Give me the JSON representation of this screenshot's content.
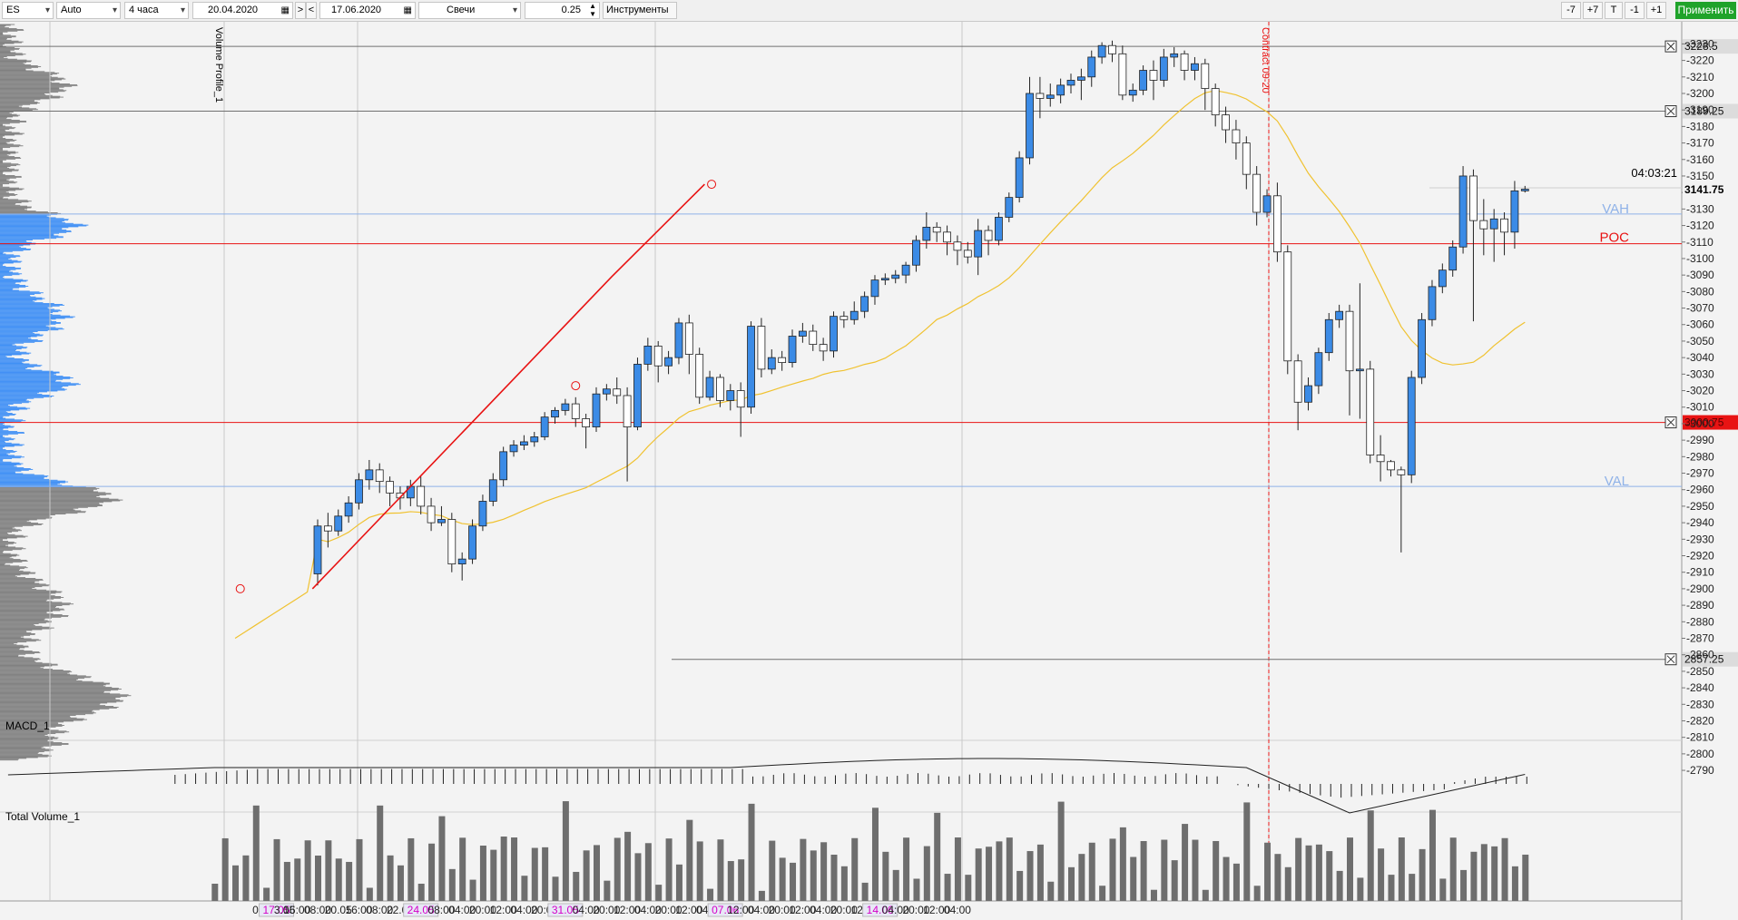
{
  "toolbar": {
    "symbol": "ES",
    "scale_mode": "Auto",
    "timeframe": "4 часа",
    "date_from": "20.04.2020",
    "nav_next": ">",
    "nav_prev": "<",
    "date_to": "17.06.2020",
    "chart_type": "Свечи",
    "tick_size": "0.25",
    "tools_label": "Инструменты",
    "btn_minus7": "-7",
    "btn_plus7": "+7",
    "btn_t": "T",
    "btn_minus1": "-1",
    "btn_plus1": "+1",
    "apply_label": "Применить",
    "apply_color": "#1fa32a"
  },
  "chart_data": {
    "type": "candlestick",
    "symbol": "ES",
    "y_range": [
      2796,
      3242
    ],
    "y_ticks": [
      3230,
      3220,
      3210,
      3200,
      3190,
      3180,
      3170,
      3160,
      3150,
      3140,
      3130,
      3120,
      3110,
      3100,
      3090,
      3080,
      3070,
      3060,
      3050,
      3040,
      3030,
      3020,
      3010,
      3000,
      2990,
      2980,
      2970,
      2960,
      2950,
      2940,
      2930,
      2920,
      2910,
      2900,
      2890,
      2880,
      2870,
      2860,
      2850,
      2840,
      2830,
      2820,
      2810,
      2800,
      2790
    ],
    "candles": [
      [
        2909,
        2938,
        2902,
        2942
      ],
      [
        2938,
        2935,
        2925,
        2946
      ],
      [
        2935,
        2944,
        2932,
        2948
      ],
      [
        2944,
        2952,
        2940,
        2956
      ],
      [
        2952,
        2966,
        2948,
        2970
      ],
      [
        2966,
        2972,
        2960,
        2978
      ],
      [
        2972,
        2965,
        2958,
        2976
      ],
      [
        2965,
        2958,
        2950,
        2968
      ],
      [
        2958,
        2955,
        2948,
        2962
      ],
      [
        2955,
        2962,
        2950,
        2966
      ],
      [
        2962,
        2950,
        2945,
        2968
      ],
      [
        2950,
        2940,
        2935,
        2955
      ],
      [
        2940,
        2942,
        2938,
        2950
      ],
      [
        2942,
        2915,
        2910,
        2946
      ],
      [
        2915,
        2918,
        2905,
        2922
      ],
      [
        2918,
        2938,
        2915,
        2942
      ],
      [
        2938,
        2953,
        2935,
        2957
      ],
      [
        2953,
        2966,
        2950,
        2970
      ],
      [
        2966,
        2983,
        2962,
        2986
      ],
      [
        2983,
        2987,
        2980,
        2990
      ],
      [
        2987,
        2989,
        2984,
        2993
      ],
      [
        2989,
        2992,
        2986,
        2995
      ],
      [
        2992,
        3004,
        2990,
        3007
      ],
      [
        3004,
        3008,
        3000,
        3010
      ],
      [
        3008,
        3012,
        3005,
        3015
      ],
      [
        3012,
        3003,
        2998,
        3016
      ],
      [
        3003,
        2998,
        2985,
        3006
      ],
      [
        2998,
        3018,
        2995,
        3022
      ],
      [
        3018,
        3021,
        3014,
        3024
      ],
      [
        3021,
        3017,
        3012,
        3028
      ],
      [
        3017,
        2998,
        2965,
        3022
      ],
      [
        2998,
        3036,
        2996,
        3040
      ],
      [
        3036,
        3047,
        3032,
        3052
      ],
      [
        3047,
        3035,
        3025,
        3050
      ],
      [
        3035,
        3040,
        3030,
        3044
      ],
      [
        3040,
        3061,
        3036,
        3064
      ],
      [
        3061,
        3042,
        3030,
        3066
      ],
      [
        3042,
        3016,
        3012,
        3046
      ],
      [
        3016,
        3028,
        3014,
        3032
      ],
      [
        3028,
        3014,
        3010,
        3030
      ],
      [
        3014,
        3020,
        3008,
        3024
      ],
      [
        3020,
        3010,
        2992,
        3025
      ],
      [
        3010,
        3059,
        3006,
        3062
      ],
      [
        3059,
        3033,
        3028,
        3064
      ],
      [
        3033,
        3040,
        3030,
        3045
      ],
      [
        3040,
        3037,
        3032,
        3044
      ],
      [
        3037,
        3053,
        3034,
        3057
      ],
      [
        3053,
        3056,
        3049,
        3061
      ],
      [
        3056,
        3048,
        3044,
        3060
      ],
      [
        3048,
        3044,
        3038,
        3052
      ],
      [
        3044,
        3065,
        3040,
        3068
      ],
      [
        3065,
        3063,
        3058,
        3068
      ],
      [
        3063,
        3068,
        3060,
        3074
      ],
      [
        3068,
        3077,
        3064,
        3080
      ],
      [
        3077,
        3087,
        3072,
        3090
      ],
      [
        3087,
        3088,
        3084,
        3091
      ],
      [
        3088,
        3090,
        3085,
        3093
      ],
      [
        3090,
        3096,
        3085,
        3098
      ],
      [
        3096,
        3111,
        3092,
        3114
      ],
      [
        3111,
        3119,
        3106,
        3128
      ],
      [
        3119,
        3116,
        3110,
        3122
      ],
      [
        3116,
        3110,
        3102,
        3120
      ],
      [
        3110,
        3105,
        3096,
        3114
      ],
      [
        3105,
        3101,
        3097,
        3110
      ],
      [
        3101,
        3117,
        3090,
        3124
      ],
      [
        3117,
        3111,
        3102,
        3120
      ],
      [
        3111,
        3125,
        3108,
        3128
      ],
      [
        3125,
        3137,
        3122,
        3140
      ],
      [
        3137,
        3161,
        3134,
        3165
      ],
      [
        3161,
        3200,
        3157,
        3210
      ],
      [
        3200,
        3197,
        3185,
        3210
      ],
      [
        3197,
        3199,
        3192,
        3206
      ],
      [
        3199,
        3205,
        3194,
        3209
      ],
      [
        3205,
        3208,
        3200,
        3212
      ],
      [
        3208,
        3210,
        3196,
        3215
      ],
      [
        3210,
        3222,
        3204,
        3226
      ],
      [
        3222,
        3229,
        3218,
        3231
      ],
      [
        3229,
        3224,
        3219,
        3232
      ],
      [
        3224,
        3199,
        3196,
        3229
      ],
      [
        3199,
        3202,
        3195,
        3206
      ],
      [
        3202,
        3214,
        3199,
        3217
      ],
      [
        3214,
        3208,
        3196,
        3220
      ],
      [
        3208,
        3222,
        3204,
        3227
      ],
      [
        3222,
        3224,
        3216,
        3228
      ],
      [
        3224,
        3214,
        3208,
        3226
      ],
      [
        3214,
        3218,
        3208,
        3222
      ],
      [
        3218,
        3203,
        3190,
        3221
      ],
      [
        3203,
        3187,
        3180,
        3206
      ],
      [
        3187,
        3178,
        3170,
        3192
      ],
      [
        3178,
        3170,
        3160,
        3184
      ],
      [
        3170,
        3151,
        3142,
        3174
      ],
      [
        3151,
        3128,
        3120,
        3156
      ],
      [
        3128,
        3138,
        3125,
        3142
      ],
      [
        3138,
        3104,
        3098,
        3146
      ],
      [
        3104,
        3038,
        3030,
        3108
      ],
      [
        3038,
        3013,
        2996,
        3042
      ],
      [
        3013,
        3023,
        3008,
        3028
      ],
      [
        3023,
        3043,
        3018,
        3046
      ],
      [
        3043,
        3063,
        3038,
        3067
      ],
      [
        3063,
        3068,
        3058,
        3072
      ],
      [
        3068,
        3032,
        3005,
        3072
      ],
      [
        3032,
        3033,
        3003,
        3085
      ],
      [
        3033,
        2981,
        2976,
        3038
      ],
      [
        2981,
        2977,
        2965,
        2993
      ],
      [
        2977,
        2972,
        2968,
        2978
      ],
      [
        2972,
        2969,
        2922,
        2974
      ],
      [
        2969,
        3028,
        2964,
        3032
      ],
      [
        3028,
        3063,
        3024,
        3067
      ],
      [
        3063,
        3083,
        3059,
        3087
      ],
      [
        3083,
        3093,
        3079,
        3097
      ],
      [
        3093,
        3107,
        3089,
        3111
      ],
      [
        3107,
        3150,
        3103,
        3156
      ],
      [
        3150,
        3123,
        3062,
        3154
      ],
      [
        3123,
        3118,
        3102,
        3136
      ],
      [
        3118,
        3124,
        3098,
        3130
      ],
      [
        3124,
        3116,
        3102,
        3128
      ],
      [
        3116,
        3141,
        3106,
        3147
      ],
      [
        3141,
        3142,
        3140,
        3144
      ]
    ],
    "price_levels": [
      {
        "label": "3228.5",
        "value": 3228.5,
        "color": "#707070"
      },
      {
        "label": "3189.25",
        "value": 3189.25,
        "color": "#707070"
      },
      {
        "label": "3000.75",
        "value": 3000.75,
        "color": "#e81313"
      },
      {
        "label": "2857.25",
        "value": 2857.25,
        "color": "#707070"
      }
    ],
    "current_price": "3141.75",
    "timer": "04:03:21",
    "vah_label": "VAH",
    "vah_value": 3127,
    "poc_label": "POC",
    "poc_value": 3109,
    "val_label": "VAL",
    "val_value": 2962,
    "trend_line": [
      [
        0,
        2900
      ],
      [
        29,
        3089
      ],
      [
        38,
        3145
      ]
    ],
    "trend_mid_marker": [
      25,
      3023
    ],
    "x_ticks": [
      {
        "label": "08:00",
        "i": -5,
        "hl": false
      },
      {
        "label": "17.05",
        "i": -4,
        "hl": true
      },
      {
        "label": "3.05",
        "i": -3.2,
        "hl": false
      },
      {
        "label": "16:00",
        "i": -2,
        "hl": false
      },
      {
        "label": "08:00",
        "i": 0,
        "hl": false
      },
      {
        "label": "20.05",
        "i": 2,
        "hl": false
      },
      {
        "label": "16:00",
        "i": 4,
        "hl": false
      },
      {
        "label": "08:00",
        "i": 6,
        "hl": false
      },
      {
        "label": "22.05",
        "i": 8,
        "hl": false
      },
      {
        "label": "24.05",
        "i": 10,
        "hl": true
      },
      {
        "label": "08:00",
        "i": 12,
        "hl": false
      },
      {
        "label": "04:00",
        "i": 14,
        "hl": false
      },
      {
        "label": "20:00",
        "i": 16,
        "hl": false
      },
      {
        "label": "12:00",
        "i": 18,
        "hl": false
      },
      {
        "label": "04:00",
        "i": 20,
        "hl": false
      },
      {
        "label": "20:00",
        "i": 22,
        "hl": false
      },
      {
        "label": "31.05",
        "i": 24,
        "hl": true
      },
      {
        "label": "04:00",
        "i": 26,
        "hl": false
      },
      {
        "label": "20:00",
        "i": 28,
        "hl": false
      },
      {
        "label": "12:00",
        "i": 30,
        "hl": false
      },
      {
        "label": "04:00",
        "i": 32,
        "hl": false
      },
      {
        "label": "20:00",
        "i": 34,
        "hl": false
      },
      {
        "label": "12:00",
        "i": 36,
        "hl": false
      },
      {
        "label": "04:00",
        "i": 38,
        "hl": false
      },
      {
        "label": "07.06",
        "i": 39.5,
        "hl": true
      },
      {
        "label": "12:00",
        "i": 41,
        "hl": false
      },
      {
        "label": "04:00",
        "i": 43,
        "hl": false
      },
      {
        "label": "20:00",
        "i": 45,
        "hl": false
      },
      {
        "label": "12:00",
        "i": 47,
        "hl": false
      },
      {
        "label": "04:00",
        "i": 49,
        "hl": false
      },
      {
        "label": "20:00",
        "i": 51,
        "hl": false
      },
      {
        "label": "12:00",
        "i": 53,
        "hl": false
      },
      {
        "label": "14.06",
        "i": 54.5,
        "hl": true
      },
      {
        "label": "04:00",
        "i": 56,
        "hl": false
      },
      {
        "label": "20:00",
        "i": 58,
        "hl": false
      },
      {
        "label": "12:00",
        "i": 60,
        "hl": false
      },
      {
        "label": "04:00",
        "i": 62,
        "hl": false
      }
    ],
    "labels": {
      "volume_profile": "Volume Profile_1",
      "contract": "Contract 09-20",
      "macd": "MACD_1",
      "total_volume": "Total Volume_1"
    },
    "colors": {
      "bull": "#3b8be6",
      "bear": "#ffffff",
      "profile_gray": "#7f7f7f",
      "profile_blue": "#3f8ff5",
      "ma": "#f0c230",
      "trend": "#e81313",
      "vah_val": "#8fb2e8",
      "poc": "#e81313"
    }
  }
}
